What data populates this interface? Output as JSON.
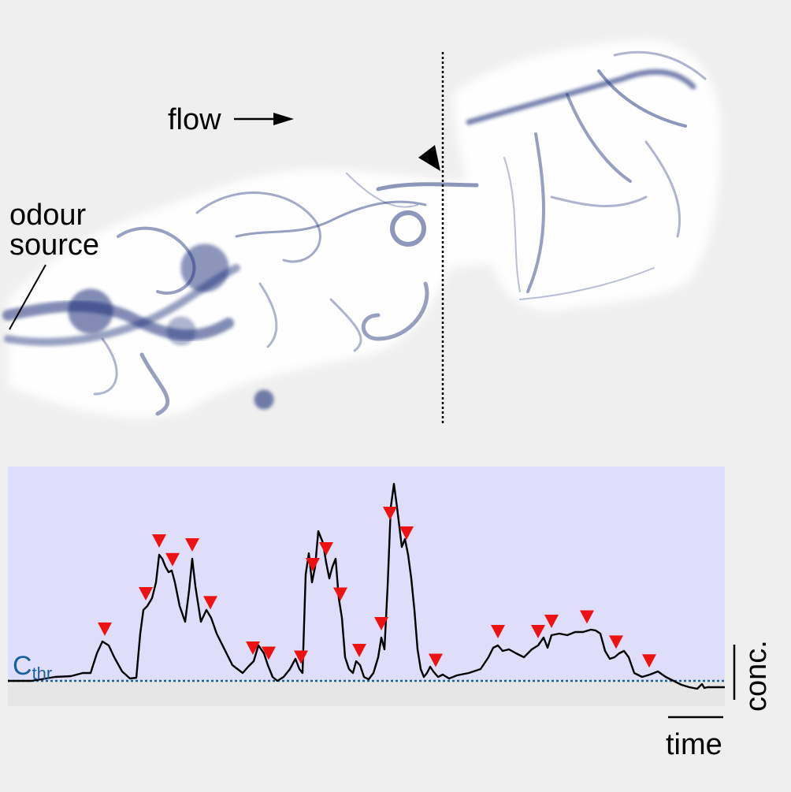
{
  "labels": {
    "flow": "flow",
    "odour_line1": "odour",
    "odour_line2": "source",
    "threshold_main": "C",
    "threshold_sub": "thr",
    "time": "time",
    "conc": "conc."
  },
  "colors": {
    "background": "#efefef",
    "plume": "#1c2f78",
    "trace_panel": "#dedefb",
    "below_threshold": "#e6e6e6",
    "trace": "#000000",
    "threshold_line": "#1a5fa0",
    "peak_marker": "#ee1111"
  },
  "chart_data": {
    "type": "line",
    "title": "",
    "xlabel": "time",
    "ylabel": "conc.",
    "x": [
      0,
      30,
      60,
      80,
      95,
      105,
      113,
      120,
      128,
      135,
      145,
      155,
      163,
      168,
      172,
      177,
      183,
      188,
      192,
      196,
      200,
      204,
      208,
      212,
      218,
      225,
      230,
      234,
      238,
      245,
      252,
      258,
      265,
      275,
      285,
      298,
      305,
      312,
      318,
      325,
      330,
      336,
      342,
      350,
      358,
      365,
      370,
      374,
      378,
      382,
      386,
      390,
      394,
      400,
      404,
      408,
      412,
      416,
      420,
      424,
      428,
      433,
      438,
      442,
      447,
      452,
      458,
      464,
      470,
      474,
      478,
      482,
      486,
      490,
      494,
      500,
      504,
      508,
      512,
      516,
      520,
      524,
      528,
      532,
      536,
      540,
      546,
      552,
      560,
      570,
      585,
      600,
      610,
      616,
      622,
      628,
      636,
      645,
      655,
      665,
      673,
      680,
      685,
      690,
      700,
      710,
      720,
      730,
      740,
      746,
      752,
      758,
      764,
      770,
      776,
      782,
      788,
      795,
      805,
      815,
      825,
      835,
      845,
      855,
      865,
      875,
      878,
      881,
      884,
      888,
      900,
      918
    ],
    "y": [
      0.0,
      0.0,
      0.05,
      0.06,
      0.1,
      0.1,
      0.35,
      0.5,
      0.45,
      0.3,
      0.12,
      0.03,
      0.04,
      0.6,
      0.9,
      0.95,
      1.05,
      1.25,
      1.6,
      1.55,
      1.45,
      1.38,
      1.4,
      1.25,
      0.95,
      0.75,
      1.15,
      1.55,
      1.2,
      0.75,
      0.9,
      0.8,
      0.6,
      0.4,
      0.2,
      0.1,
      0.18,
      0.25,
      0.45,
      0.35,
      0.2,
      0.05,
      0.0,
      0.05,
      0.15,
      0.28,
      0.15,
      0.1,
      1.35,
      1.62,
      1.25,
      1.45,
      1.9,
      1.75,
      1.5,
      1.3,
      1.45,
      1.55,
      1.05,
      0.8,
      0.3,
      0.15,
      0.1,
      0.25,
      0.2,
      0.05,
      0.02,
      0.1,
      0.3,
      0.55,
      0.4,
      1.2,
      2.2,
      2.5,
      2.2,
      1.7,
      1.8,
      1.6,
      1.3,
      0.9,
      0.4,
      0.15,
      0.05,
      0.1,
      0.18,
      0.12,
      0.05,
      0.08,
      0.03,
      0.07,
      0.1,
      0.15,
      0.3,
      0.42,
      0.45,
      0.38,
      0.4,
      0.35,
      0.3,
      0.4,
      0.45,
      0.55,
      0.42,
      0.58,
      0.6,
      0.58,
      0.62,
      0.62,
      0.65,
      0.64,
      0.6,
      0.38,
      0.28,
      0.3,
      0.35,
      0.38,
      0.3,
      0.1,
      0.05,
      0.08,
      0.12,
      0.05,
      0.0,
      -0.05,
      -0.08,
      -0.1,
      -0.07,
      -0.04,
      -0.09,
      -0.08,
      -0.08,
      -0.08
    ],
    "threshold": 0.0,
    "peaks_x": [
      123,
      175,
      192,
      209,
      234,
      257,
      311,
      331,
      372,
      387,
      404,
      422,
      446,
      474,
      485,
      506,
      543,
      622,
      673,
      690,
      735,
      772,
      814
    ]
  }
}
